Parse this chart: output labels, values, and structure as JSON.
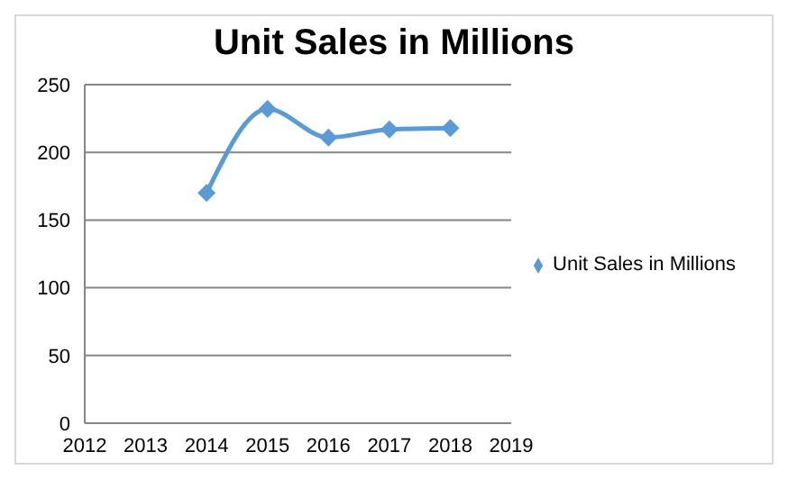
{
  "chart_data": {
    "type": "line",
    "title": "Unit Sales in Millions",
    "x": [
      2014,
      2015,
      2016,
      2017,
      2018
    ],
    "series": [
      {
        "name": "Unit Sales in Millions",
        "color": "#5b9bd5",
        "values": [
          170,
          232,
          211,
          217,
          218
        ]
      }
    ],
    "xlim": [
      2012,
      2019
    ],
    "xticks": [
      2012,
      2013,
      2014,
      2015,
      2016,
      2017,
      2018,
      2019
    ],
    "ylim": [
      0,
      250
    ],
    "yticks": [
      0,
      50,
      100,
      150,
      200,
      250
    ],
    "grid": "y",
    "legend": "right",
    "marker": "diamond",
    "line_style": "solid"
  }
}
